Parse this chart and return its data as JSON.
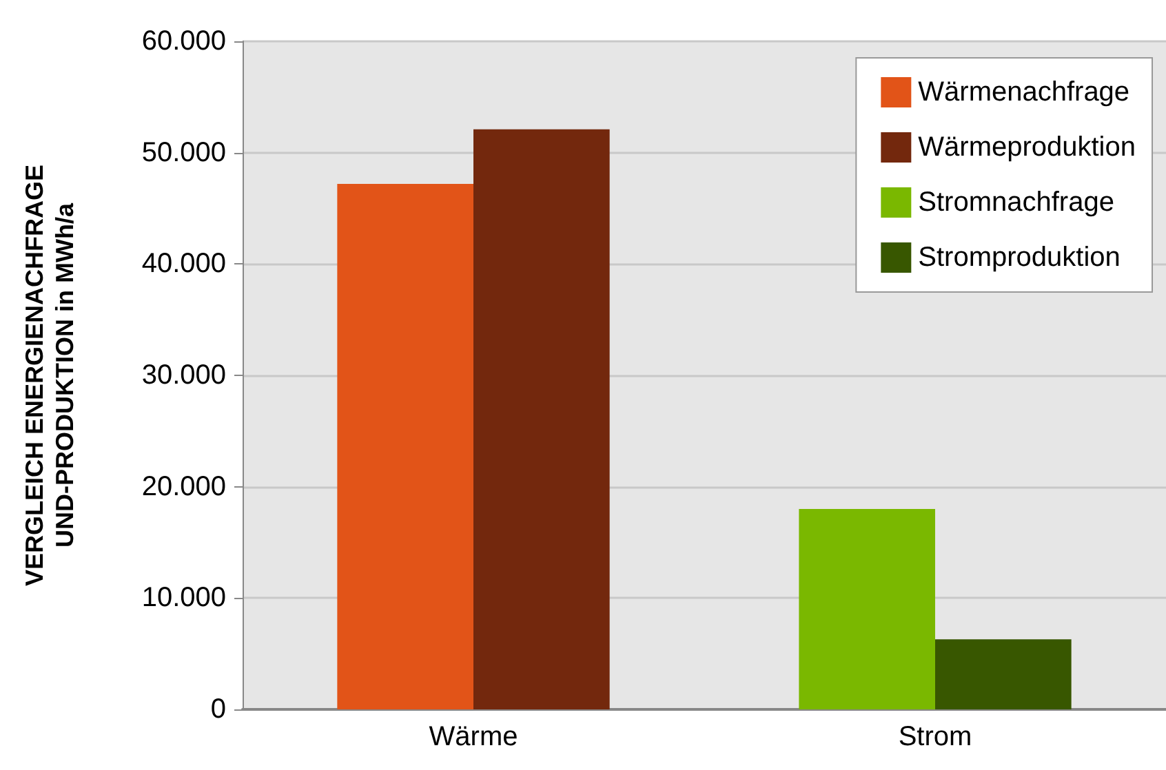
{
  "chart_data": {
    "type": "bar",
    "ylabel": "VERGLEICH ENERGIENACHFRAGE\nUND-PRODUKTION in MWh/a",
    "categories": [
      "Wärme",
      "Strom"
    ],
    "series": [
      {
        "name": "Wärmenachfrage",
        "color": "#e25418",
        "values": [
          47200,
          null
        ]
      },
      {
        "name": "Wärmeproduktion",
        "color": "#73280d",
        "values": [
          52100,
          null
        ]
      },
      {
        "name": "Stromnachfrage",
        "color": "#7ab800",
        "values": [
          null,
          18000
        ]
      },
      {
        "name": "Stromproduktion",
        "color": "#385700",
        "values": [
          null,
          6300
        ]
      }
    ],
    "ylim": [
      0,
      60000
    ],
    "yticks": [
      {
        "value": 0,
        "label": "0"
      },
      {
        "value": 10000,
        "label": "10.000"
      },
      {
        "value": 20000,
        "label": "20.000"
      },
      {
        "value": 30000,
        "label": "30.000"
      },
      {
        "value": 40000,
        "label": "40.000"
      },
      {
        "value": 50000,
        "label": "50.000"
      },
      {
        "value": 60000,
        "label": "60.000"
      }
    ],
    "grid": "y",
    "legend": "top right"
  }
}
